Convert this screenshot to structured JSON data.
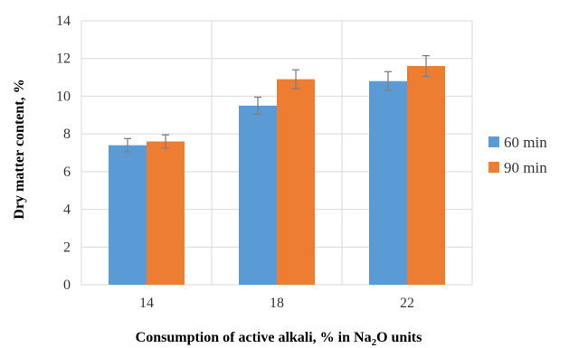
{
  "chart_data": {
    "type": "bar",
    "categories": [
      "14",
      "18",
      "22"
    ],
    "series": [
      {
        "name": "60 min",
        "color": "#5b9bd5",
        "values": [
          7.4,
          9.5,
          10.8
        ],
        "errors": [
          0.35,
          0.45,
          0.5
        ]
      },
      {
        "name": "90 min",
        "color": "#ed7d31",
        "values": [
          7.6,
          10.9,
          11.6
        ],
        "errors": [
          0.35,
          0.5,
          0.55
        ]
      }
    ],
    "xlabel": {
      "pre": "Consumption of active alkali, % in Na",
      "sub": "2",
      "post": "O units"
    },
    "ylabel": "Dry matter content, %",
    "ylim": [
      0,
      14
    ],
    "yticks": [
      0,
      2,
      4,
      6,
      8,
      10,
      12,
      14
    ],
    "grid": true,
    "legend_position": "right"
  }
}
